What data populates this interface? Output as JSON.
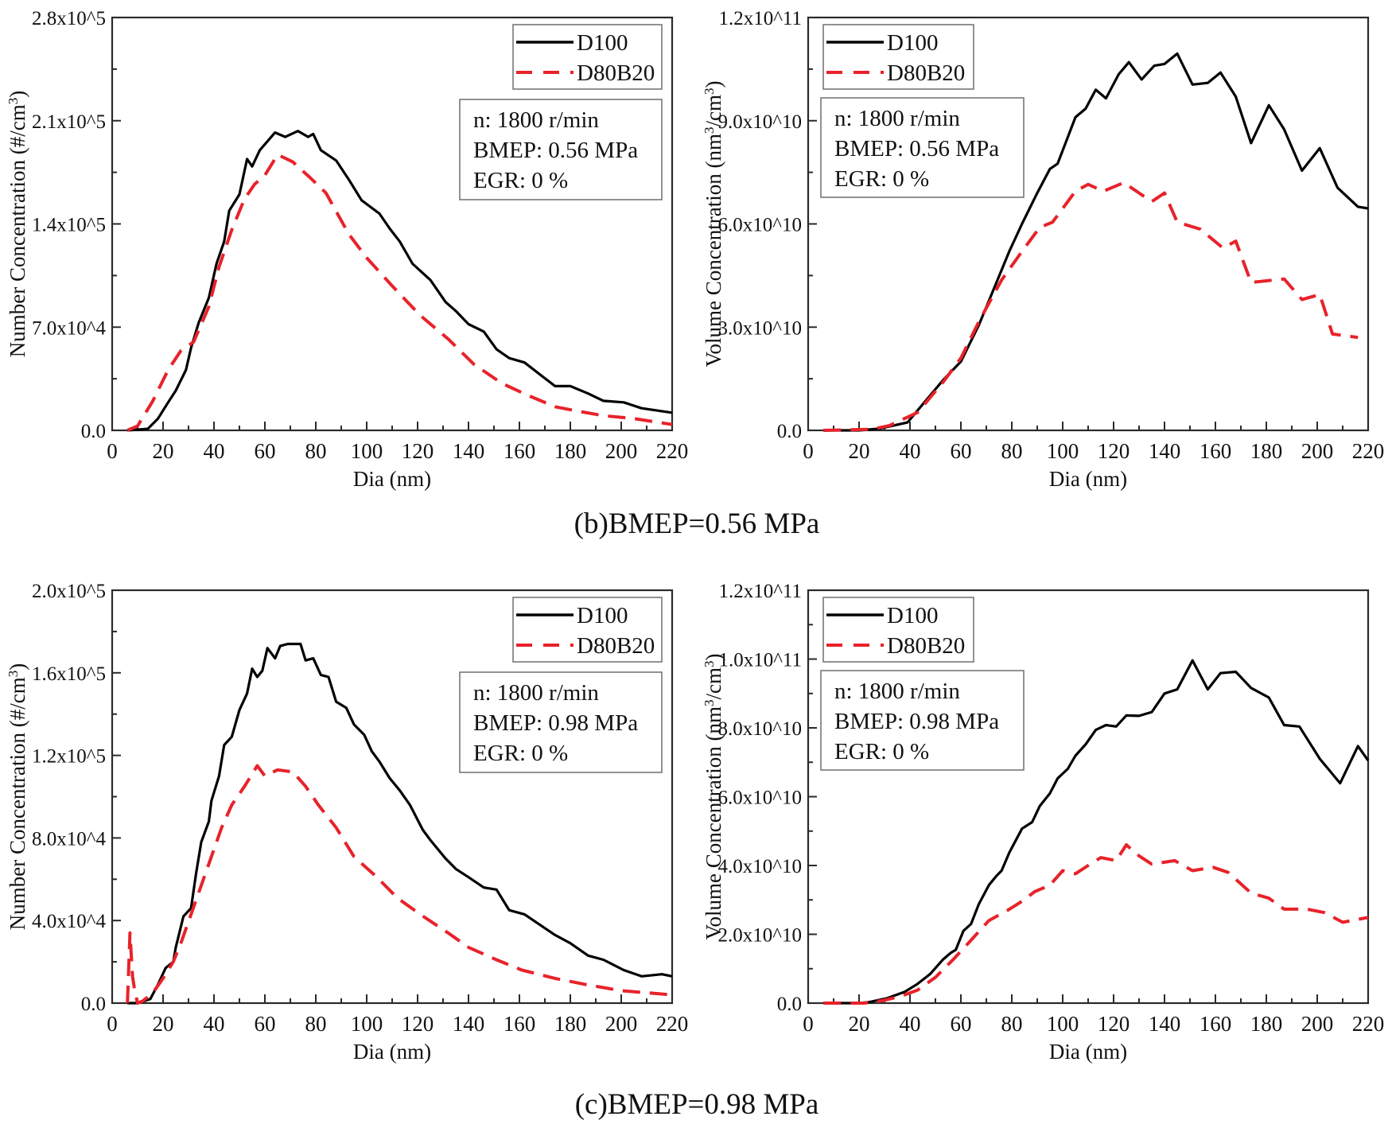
{
  "captions": [
    "(b)BMEP=0.56 MPa",
    "(c)BMEP=0.98 MPa"
  ],
  "colors": {
    "D100": "#000000",
    "D80B20": "#e8222a",
    "axis": "#2a2a2a"
  },
  "chart_data": [
    {
      "type": "line",
      "xlabel": "Dia (nm)",
      "ylabel": "Number Concentration (#/cm^3)",
      "xlim": [
        0,
        220
      ],
      "ylim": [
        0,
        280000
      ],
      "xticks": [
        0,
        20,
        40,
        60,
        80,
        100,
        120,
        140,
        160,
        180,
        200,
        220
      ],
      "xtick_labels": [
        "0",
        "20",
        "40",
        "60",
        "80",
        "100",
        "120",
        "140",
        "160",
        "180",
        "200",
        "220"
      ],
      "yticks": [
        0,
        70000,
        140000,
        210000,
        280000
      ],
      "ytick_labels": [
        "0.0",
        "7.0x10^4",
        "1.4x10^5",
        "2.1x10^5",
        "2.8x10^5"
      ],
      "legend": {
        "position": "top-right",
        "entries": [
          "D100",
          "D80B20"
        ]
      },
      "annotation": [
        "n: 1800 r/min",
        "BMEP: 0.56 MPa",
        "EGR: 0 %"
      ],
      "grid": false,
      "series": [
        {
          "name": "D100",
          "style": "solid",
          "x": [
            6,
            14,
            18,
            22,
            25,
            29,
            31,
            34,
            38,
            41,
            44,
            46,
            50,
            53,
            55,
            58,
            64,
            68,
            73,
            77,
            79,
            82,
            88,
            93,
            98,
            105,
            109,
            113,
            118,
            125,
            131,
            135,
            140,
            146,
            151,
            156,
            162,
            168,
            174,
            180,
            187,
            193,
            201,
            208,
            220
          ],
          "y": [
            0,
            1000,
            8000,
            19000,
            27000,
            41000,
            56000,
            73000,
            90000,
            113000,
            128000,
            149000,
            160000,
            184000,
            179000,
            190000,
            202000,
            199000,
            203000,
            199000,
            201000,
            190000,
            183000,
            170000,
            156000,
            147000,
            137000,
            128000,
            113000,
            102000,
            87000,
            81000,
            72000,
            67000,
            55000,
            49000,
            46000,
            38000,
            30000,
            30000,
            25000,
            20000,
            19000,
            15000,
            12000
          ]
        },
        {
          "name": "D80B20",
          "style": "dashed",
          "x": [
            6,
            10,
            16,
            22,
            27,
            32,
            38,
            42,
            47,
            52,
            56,
            60,
            65,
            71,
            78,
            84,
            93,
            100,
            110,
            121,
            132,
            142,
            153,
            163,
            174,
            183,
            193,
            205,
            220
          ],
          "y": [
            0,
            3000,
            20000,
            41000,
            54000,
            60000,
            84000,
            111000,
            136000,
            157000,
            167000,
            173000,
            187000,
            182000,
            171000,
            161000,
            133000,
            117000,
            98000,
            78000,
            62000,
            45000,
            32000,
            24000,
            16000,
            13000,
            10000,
            8000,
            4000
          ]
        }
      ]
    },
    {
      "type": "line",
      "xlabel": "Dia (nm)",
      "ylabel": "Volume Concentration (nm^3/cm^3)",
      "xlim": [
        0,
        220
      ],
      "ylim": [
        0,
        120000000000.0
      ],
      "xticks": [
        0,
        20,
        40,
        60,
        80,
        100,
        120,
        140,
        160,
        180,
        200,
        220
      ],
      "xtick_labels": [
        "0",
        "20",
        "40",
        "60",
        "80",
        "100",
        "120",
        "140",
        "160",
        "180",
        "200",
        "220"
      ],
      "yticks": [
        0,
        30000000000.0,
        60000000000.0,
        90000000000.0,
        120000000000.0
      ],
      "ytick_labels": [
        "0.0",
        "3.0x10^10",
        "6.0x10^10",
        "9.0x10^10",
        "1.2x10^11"
      ],
      "legend": {
        "position": "top-left",
        "entries": [
          "D100",
          "D80B20"
        ]
      },
      "annotation": [
        "n: 1800 r/min",
        "BMEP: 0.56 MPa",
        "EGR: 0 %"
      ],
      "grid": false,
      "series": [
        {
          "name": "D100",
          "style": "solid",
          "x": [
            6,
            20,
            28,
            39,
            53,
            60,
            67,
            74,
            79,
            84,
            90,
            95,
            98,
            105,
            109,
            113,
            117,
            122,
            126,
            131,
            136,
            140,
            145,
            151,
            157,
            162,
            168,
            174,
            181,
            187,
            194,
            201,
            208,
            216,
            220
          ],
          "y": [
            0,
            0,
            500000000.0,
            2300000000.0,
            14600000000.0,
            20000000000.0,
            30500000000.0,
            43000000000.0,
            52000000000.0,
            60000000000.0,
            69000000000.0,
            76000000000.0,
            77500000000.0,
            91000000000.0,
            93500000000.0,
            99000000000.0,
            96500000000.0,
            103500000000.0,
            107000000000.0,
            102000000000.0,
            106000000000.0,
            106500000000.0,
            109500000000.0,
            100500000000.0,
            101000000000.0,
            104000000000.0,
            97000000000.0,
            83500000000.0,
            94500000000.0,
            87500000000.0,
            75500000000.0,
            82000000000.0,
            70500000000.0,
            65000000000.0,
            64500000000.0
          ]
        },
        {
          "name": "D80B20",
          "style": "dashed",
          "x": [
            6,
            25,
            32,
            43,
            53,
            60,
            67,
            76,
            84,
            91,
            96,
            105,
            110,
            116,
            124,
            130,
            135,
            140,
            145,
            154,
            163,
            168,
            174,
            187,
            194,
            201,
            206,
            216
          ],
          "y": [
            0,
            300000000.0,
            1400000000.0,
            5200000000.0,
            14000000000.0,
            21000000000.0,
            31500000000.0,
            43700000000.0,
            52000000000.0,
            59000000000.0,
            60500000000.0,
            69500000000.0,
            71500000000.0,
            69500000000.0,
            72000000000.0,
            69000000000.0,
            66500000000.0,
            69000000000.0,
            60500000000.0,
            58500000000.0,
            53000000000.0,
            55000000000.0,
            43000000000.0,
            44000000000.0,
            38000000000.0,
            39500000000.0,
            28000000000.0,
            27000000000.0
          ]
        }
      ]
    },
    {
      "type": "line",
      "xlabel": "Dia (nm)",
      "ylabel": "Number Concentration (#/cm^3)",
      "xlim": [
        0,
        220
      ],
      "ylim": [
        0,
        200000
      ],
      "xticks": [
        0,
        20,
        40,
        60,
        80,
        100,
        120,
        140,
        160,
        180,
        200,
        220
      ],
      "xtick_labels": [
        "0",
        "20",
        "40",
        "60",
        "80",
        "100",
        "120",
        "140",
        "160",
        "180",
        "200",
        "220"
      ],
      "yticks": [
        0,
        40000,
        80000,
        120000,
        160000,
        200000
      ],
      "ytick_labels": [
        "0.0",
        "4.0x10^4",
        "8.0x10^4",
        "1.2x10^5",
        "1.6x10^5",
        "2.0x10^5"
      ],
      "legend": {
        "position": "top-right",
        "entries": [
          "D100",
          "D80B20"
        ]
      },
      "annotation": [
        "n: 1800 r/min",
        "BMEP: 0.98 MPa",
        "EGR: 0 %"
      ],
      "grid": false,
      "series": [
        {
          "name": "D100",
          "style": "solid",
          "x": [
            6,
            10,
            15,
            18,
            21,
            24,
            25,
            28,
            31,
            33,
            35,
            38,
            39,
            42,
            44,
            47,
            50,
            53,
            55,
            57,
            59,
            61,
            64,
            66,
            69,
            74,
            76,
            79,
            82,
            85,
            88,
            92,
            95,
            99,
            102,
            105,
            109,
            113,
            117,
            122,
            125,
            131,
            135,
            140,
            146,
            151,
            156,
            162,
            168,
            174,
            180,
            187,
            193,
            201,
            208,
            216,
            220
          ],
          "y": [
            0,
            0,
            2000,
            9000,
            17000,
            20000,
            27000,
            42000,
            46000,
            63000,
            78000,
            88000,
            98000,
            110000,
            125000,
            129000,
            142000,
            150000,
            162000,
            158000,
            161000,
            172000,
            167000,
            173000,
            174000,
            174000,
            166000,
            167000,
            159000,
            158000,
            146000,
            143000,
            135000,
            130000,
            122000,
            117000,
            109000,
            103000,
            96000,
            84000,
            79000,
            70000,
            65000,
            61000,
            56000,
            55000,
            45000,
            43000,
            38000,
            33000,
            29000,
            23000,
            21000,
            16000,
            13000,
            14000,
            13000
          ]
        },
        {
          "name": "D80B20",
          "style": "dashed",
          "x": [
            6,
            7,
            8,
            9,
            10,
            12,
            16,
            20,
            24,
            27,
            31,
            35,
            39,
            43,
            47,
            52,
            57,
            60,
            65,
            71,
            76,
            81,
            88,
            95,
            104,
            112,
            121,
            132,
            140,
            151,
            161,
            174,
            186,
            200,
            220
          ],
          "y": [
            0,
            34000,
            13000,
            5000,
            0,
            1000,
            5000,
            12000,
            20000,
            29000,
            43000,
            57000,
            71000,
            85000,
            96000,
            105000,
            115000,
            110000,
            113000,
            112000,
            105000,
            96000,
            85000,
            71000,
            61000,
            51000,
            43000,
            34000,
            27000,
            21000,
            16000,
            12000,
            9000,
            6000,
            4000
          ]
        }
      ]
    },
    {
      "type": "line",
      "xlabel": "Dia (nm)",
      "ylabel": "Volume Concentration (nm^3/cm^3)",
      "xlim": [
        0,
        220
      ],
      "ylim": [
        0,
        120000000000.0
      ],
      "xticks": [
        0,
        20,
        40,
        60,
        80,
        100,
        120,
        140,
        160,
        180,
        200,
        220
      ],
      "xtick_labels": [
        "0",
        "20",
        "40",
        "60",
        "80",
        "100",
        "120",
        "140",
        "160",
        "180",
        "200",
        "220"
      ],
      "yticks": [
        0,
        20000000000.0,
        40000000000.0,
        60000000000.0,
        80000000000.0,
        100000000000.0,
        120000000000.0
      ],
      "ytick_labels": [
        "0.0",
        "2.0x10^10",
        "4.0x10^10",
        "6.0x10^10",
        "8.0x10^10",
        "1.0x10^11",
        "1.2x10^11"
      ],
      "legend": {
        "position": "top-left",
        "entries": [
          "D100",
          "D80B20"
        ]
      },
      "annotation": [
        "n: 1800 r/min",
        "BMEP: 0.98 MPa",
        "EGR: 0 %"
      ],
      "grid": false,
      "series": [
        {
          "name": "D100",
          "style": "solid",
          "x": [
            6,
            20,
            24,
            31,
            38,
            43,
            48,
            53,
            56,
            58,
            61,
            64,
            67,
            71,
            74,
            76,
            79,
            84,
            88,
            91,
            95,
            98,
            102,
            105,
            109,
            113,
            117,
            121,
            125,
            130,
            135,
            140,
            145,
            151,
            157,
            162,
            168,
            174,
            181,
            187,
            193,
            201,
            209,
            216,
            220
          ],
          "y": [
            0,
            0,
            300000000.0,
            1400000000.0,
            3300000000.0,
            5600000000.0,
            8500000000.0,
            12700000000.0,
            14600000000.0,
            15500000000.0,
            21000000000.0,
            23000000000.0,
            28700000000.0,
            34300000000.0,
            37000000000.0,
            38500000000.0,
            43700000000.0,
            50700000000.0,
            52600000000.0,
            57300000000.0,
            61000000000.0,
            65300000000.0,
            68100000000.0,
            71900000000.0,
            75200000000.0,
            79400000000.0,
            80800000000.0,
            80400000000.0,
            83600000000.0,
            83500000000.0,
            84600000000.0,
            90000000000.0,
            91200000000.0,
            99600000000.0,
            91200000000.0,
            95900000000.0,
            96300000000.0,
            91600000000.0,
            88800000000.0,
            80800000000.0,
            80400000000.0,
            71000000000.0,
            63900000000.0,
            74700000000.0,
            70500000000.0
          ]
        },
        {
          "name": "D80B20",
          "style": "dashed",
          "x": [
            6,
            22,
            29,
            36,
            43,
            50,
            57,
            64,
            71,
            78,
            84,
            89,
            95,
            100,
            105,
            110,
            115,
            121,
            125,
            130,
            135,
            144,
            151,
            159,
            165,
            174,
            181,
            187,
            196,
            203,
            210,
            220
          ],
          "y": [
            0,
            0,
            700000000.0,
            1900000000.0,
            3800000000.0,
            7500000000.0,
            12700000000.0,
            18300000000.0,
            24000000000.0,
            26800000000.0,
            29600000000.0,
            32400000000.0,
            34300000000.0,
            38500000000.0,
            37600000000.0,
            40000000000.0,
            42300000000.0,
            41400000000.0,
            46000000000.0,
            42800000000.0,
            40400000000.0,
            41400000000.0,
            38500000000.0,
            39500000000.0,
            38000000000.0,
            32000000000.0,
            30500000000.0,
            27300000000.0,
            27300000000.0,
            26300000000.0,
            23500000000.0,
            24900000000.0
          ]
        }
      ]
    }
  ]
}
